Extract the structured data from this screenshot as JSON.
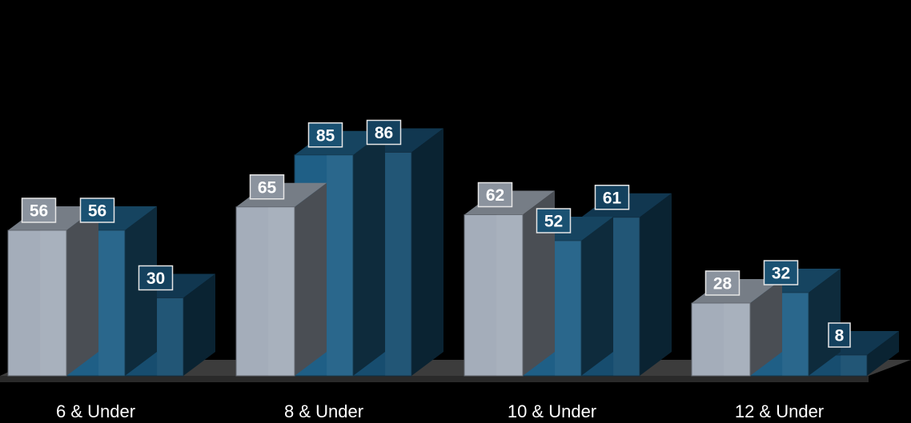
{
  "chart_data": {
    "type": "bar",
    "categories": [
      "6 & Under",
      "8 & Under",
      "10 & Under",
      "12 & Under"
    ],
    "series": [
      {
        "values": [
          56,
          65,
          62,
          28
        ],
        "color": "#a4adba"
      },
      {
        "values": [
          56,
          85,
          52,
          32
        ],
        "color": "#1f5f86"
      },
      {
        "values": [
          30,
          86,
          61,
          8
        ],
        "color": "#174d6f"
      }
    ],
    "ylim": [
      0,
      100
    ],
    "grid": false,
    "legend": "none",
    "style": "3d-columns",
    "background": "#000000",
    "floor_color": "#3c3c3c"
  }
}
